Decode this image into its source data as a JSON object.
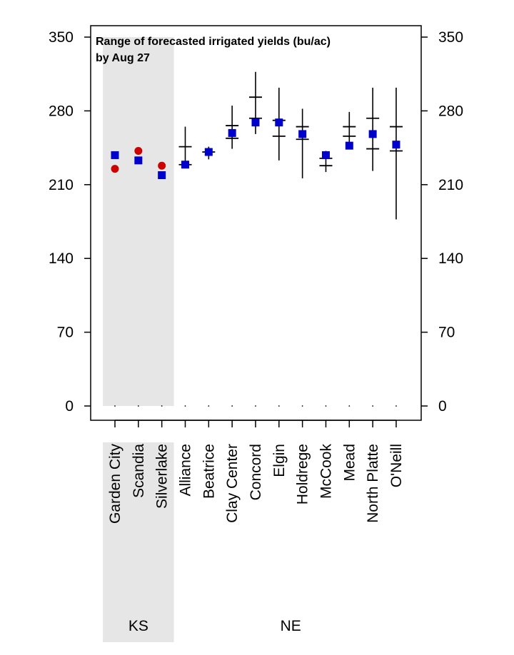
{
  "chart_data": {
    "type": "scatter",
    "title_lines": [
      "Range of forecasted irrigated yields (bu/ac)",
      "by Aug 27"
    ],
    "ylim": [
      0,
      350
    ],
    "yticks": [
      "0",
      "70",
      "140",
      "210",
      "280",
      "350"
    ],
    "categories": [
      "Garden City",
      "Scandia",
      "Silverlake",
      "Alliance",
      "Beatrice",
      "Clay Center",
      "Concord",
      "Elgin",
      "Holdrege",
      "McCook",
      "Mead",
      "North Platte",
      "O'Neill"
    ],
    "groups": [
      {
        "label": "KS",
        "categories": [
          "Garden City",
          "Scandia",
          "Silverlake"
        ],
        "shaded": true
      },
      {
        "label": "NE",
        "categories": [
          "Alliance",
          "Beatrice",
          "Clay Center",
          "Concord",
          "Elgin",
          "Holdrege",
          "McCook",
          "Mead",
          "North Platte",
          "O'Neill"
        ],
        "shaded": false
      }
    ],
    "series": [
      {
        "marker": "square",
        "color": "#0000cc",
        "values": [
          238,
          233,
          219,
          229,
          241,
          259,
          269,
          269,
          258,
          238,
          247,
          258,
          248
        ]
      },
      {
        "marker": "circle",
        "color": "#cc0000",
        "values": [
          225,
          242,
          228,
          null,
          null,
          null,
          null,
          null,
          null,
          null,
          null,
          null,
          null
        ]
      }
    ],
    "ranges": [
      {
        "category": "Alliance",
        "min": 226,
        "max": 265,
        "ticks": [
          229,
          246
        ]
      },
      {
        "category": "Beatrice",
        "min": 234,
        "max": 246,
        "ticks": [
          241
        ]
      },
      {
        "category": "Clay Center",
        "min": 244,
        "max": 285,
        "ticks": [
          254,
          266
        ]
      },
      {
        "category": "Concord",
        "min": 258,
        "max": 317,
        "ticks": [
          273,
          293
        ]
      },
      {
        "category": "Elgin",
        "min": 233,
        "max": 302,
        "ticks": [
          256,
          271
        ]
      },
      {
        "category": "Holdrege",
        "min": 216,
        "max": 282,
        "ticks": [
          253,
          265
        ]
      },
      {
        "category": "McCook",
        "min": 222,
        "max": 242,
        "ticks": [
          228,
          235
        ]
      },
      {
        "category": "Mead",
        "min": 247,
        "max": 279,
        "ticks": [
          256,
          265
        ]
      },
      {
        "category": "North Platte",
        "min": 223,
        "max": 302,
        "ticks": [
          244,
          273
        ]
      },
      {
        "category": "O'Neill",
        "min": 177,
        "max": 302,
        "ticks": [
          242,
          265
        ]
      }
    ]
  }
}
